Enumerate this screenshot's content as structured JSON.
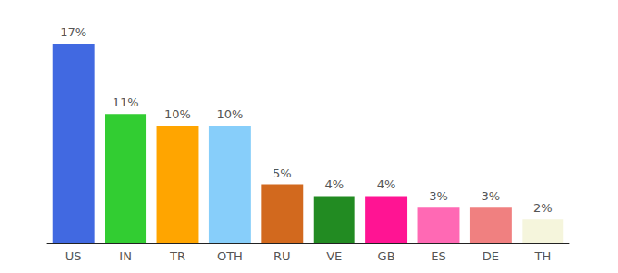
{
  "chart_data": {
    "type": "bar",
    "categories": [
      "US",
      "IN",
      "TR",
      "OTH",
      "RU",
      "VE",
      "GB",
      "ES",
      "DE",
      "TH"
    ],
    "values": [
      17,
      11,
      10,
      10,
      5,
      4,
      4,
      3,
      3,
      2
    ],
    "value_labels": [
      "17%",
      "11%",
      "10%",
      "10%",
      "5%",
      "4%",
      "4%",
      "3%",
      "3%",
      "2%"
    ],
    "colors": [
      "#4169e1",
      "#32cd32",
      "#ffa500",
      "#87cefa",
      "#d2691e",
      "#228b22",
      "#ff1493",
      "#ff69b4",
      "#f08080",
      "#f5f5dc"
    ],
    "ylim": [
      0,
      17
    ],
    "grid": false,
    "data_labels": true,
    "tick_labels": "x"
  }
}
